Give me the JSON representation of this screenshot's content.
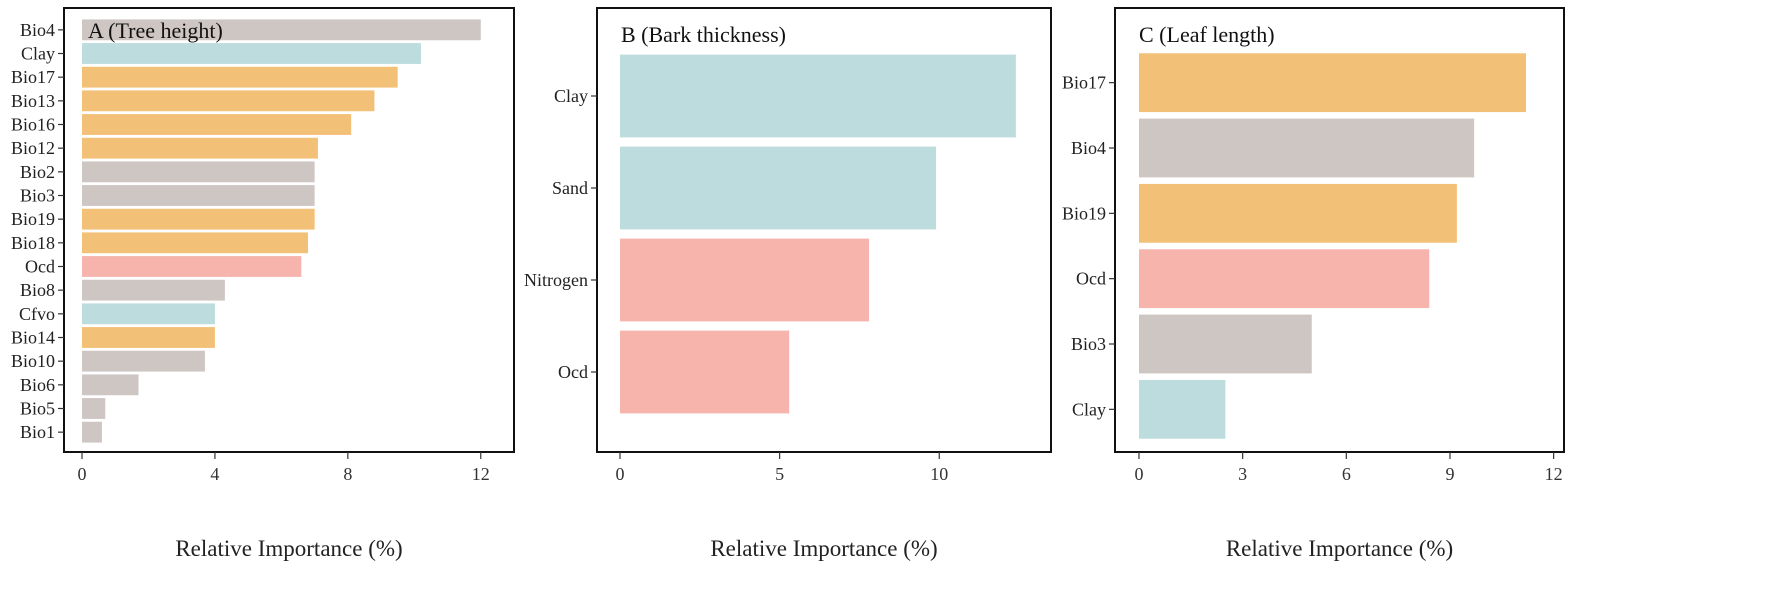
{
  "chart_data": [
    {
      "type": "bar",
      "orientation": "horizontal",
      "title": "A (Tree height)",
      "xlabel": "Relative Importance (%)",
      "xlim": [
        0,
        13
      ],
      "xticks": [
        0,
        4,
        8,
        12
      ],
      "grid": false,
      "categories": [
        "Bio4",
        "Clay",
        "Bio17",
        "Bio13",
        "Bio16",
        "Bio12",
        "Bio2",
        "Bio3",
        "Bio19",
        "Bio18",
        "Ocd",
        "Bio8",
        "Cfvo",
        "Bio14",
        "Bio10",
        "Bio6",
        "Bio5",
        "Bio1"
      ],
      "values": [
        12.0,
        10.2,
        9.5,
        8.8,
        8.1,
        7.1,
        7.0,
        7.0,
        7.0,
        6.8,
        6.6,
        4.3,
        4.0,
        4.0,
        3.7,
        1.7,
        0.7,
        0.6
      ],
      "groups": [
        "climate",
        "soil",
        "precip",
        "precip",
        "precip",
        "precip",
        "climate",
        "climate",
        "precip",
        "precip",
        "organic",
        "climate",
        "soil",
        "precip",
        "climate",
        "climate",
        "climate",
        "climate"
      ]
    },
    {
      "type": "bar",
      "orientation": "horizontal",
      "title": "B (Bark thickness)",
      "xlabel": "Relative Importance (%)",
      "xlim": [
        0,
        13.5
      ],
      "xticks": [
        0,
        5,
        10
      ],
      "grid": false,
      "categories": [
        "Clay",
        "Sand",
        "Nitrogen",
        "Ocd"
      ],
      "values": [
        12.4,
        9.9,
        7.8,
        5.3
      ],
      "groups": [
        "soil",
        "soil",
        "organic",
        "organic"
      ]
    },
    {
      "type": "bar",
      "orientation": "horizontal",
      "title": "C (Leaf length)",
      "xlabel": "Relative Importance (%)",
      "xlim": [
        0,
        12.3
      ],
      "xticks": [
        0,
        3,
        6,
        9,
        12
      ],
      "grid": false,
      "categories": [
        "Bio17",
        "Bio4",
        "Bio19",
        "Ocd",
        "Bio3",
        "Clay"
      ],
      "values": [
        11.2,
        9.7,
        9.2,
        8.4,
        5.0,
        2.5
      ],
      "groups": [
        "precip",
        "climate",
        "precip",
        "organic",
        "climate",
        "soil"
      ]
    }
  ],
  "colors": {
    "climate": "#cec6c3",
    "soil": "#bcdcdd",
    "precip": "#f3c077",
    "organic": "#f6b4ad",
    "frame": "#111111",
    "tick": "#333333"
  }
}
